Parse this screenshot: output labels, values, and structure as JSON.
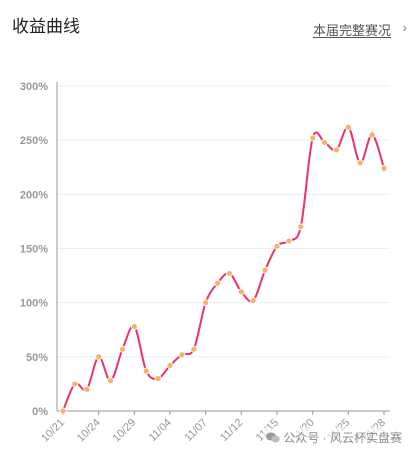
{
  "header": {
    "title": "收益曲线",
    "link_label": "本届完整赛况",
    "chevron_icon": "chevron-right-icon"
  },
  "watermark": {
    "icon": "wechat-icon",
    "text": "公众号 · 风云杯实盘赛"
  },
  "colors": {
    "line": "#e8336f",
    "marker": "#f7b267",
    "axis": "#999999",
    "grid": "#eeeeee"
  },
  "chart_data": {
    "type": "line",
    "title": "",
    "xlabel": "",
    "ylabel": "",
    "x_tick_labels": [
      "10/21",
      "10/24",
      "10/29",
      "11/04",
      "11/07",
      "11/12",
      "11/15",
      "11/20",
      "11/25",
      "11/28"
    ],
    "y_tick_labels": [
      "0%",
      "50%",
      "100%",
      "150%",
      "200%",
      "250%",
      "300%"
    ],
    "ylim": [
      0,
      300
    ],
    "grid": true,
    "legend": "none",
    "series": [
      {
        "values": [
          0,
          25,
          20,
          50,
          28,
          57,
          78,
          37,
          30,
          42,
          52,
          57,
          100,
          118,
          127,
          110,
          102,
          130,
          152,
          157,
          170,
          252,
          248,
          241,
          262,
          229,
          255,
          224
        ]
      }
    ]
  }
}
